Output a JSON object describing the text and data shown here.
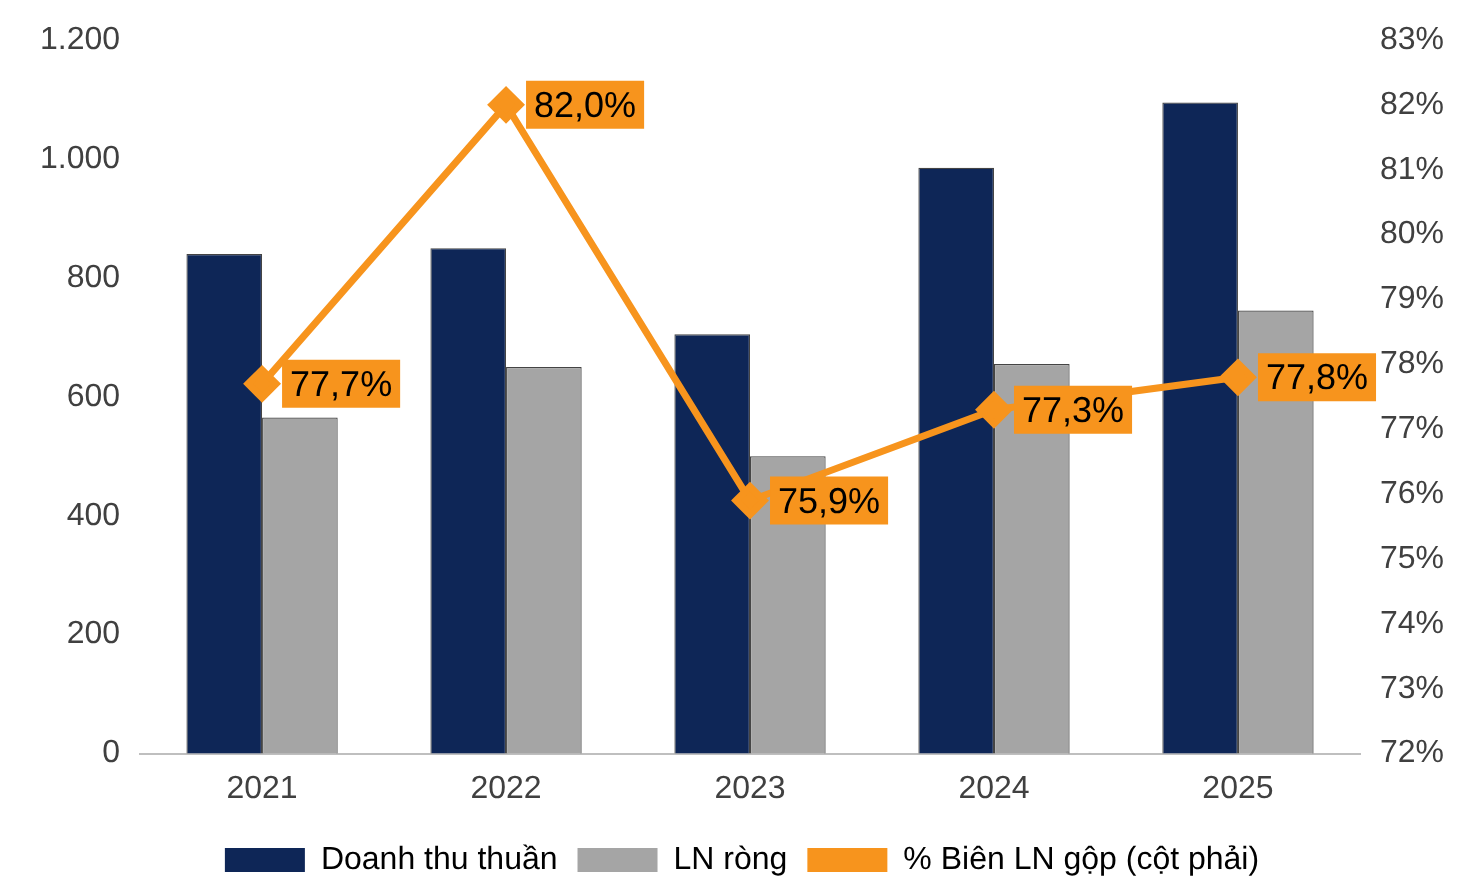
{
  "chart_data": {
    "type": "bar",
    "categories": [
      "2021",
      "2022",
      "2023",
      "2024",
      "2025"
    ],
    "series": [
      {
        "name": "Doanh thu thuần",
        "color": "#0e2657",
        "values": [
          840,
          850,
          705,
          985,
          1095
        ]
      },
      {
        "name": "LN ròng",
        "color": "#a5a5a5",
        "values": [
          565,
          650,
          500,
          655,
          745
        ]
      },
      {
        "name": "% Biên LN gộp (cột phải)",
        "type": "line",
        "axis": "y2",
        "color": "#f7941d",
        "marker": "diamond",
        "values": [
          77.7,
          82.0,
          75.9,
          77.3,
          77.8
        ],
        "value_labels": [
          "77,7%",
          "82,0%",
          "75,9%",
          "77,3%",
          "77,8%"
        ]
      }
    ],
    "ylim": [
      0,
      1200
    ],
    "yticks": [
      0,
      200,
      400,
      600,
      800,
      {
        "value": 1000,
        "label": "1.000"
      },
      {
        "value": 1200,
        "label": "1.200"
      }
    ],
    "y2lim": [
      72,
      83
    ],
    "y2ticks": [
      {
        "value": 72,
        "label": "72%"
      },
      {
        "value": 73,
        "label": "73%"
      },
      {
        "value": 74,
        "label": "74%"
      },
      {
        "value": 75,
        "label": "75%"
      },
      {
        "value": 76,
        "label": "76%"
      },
      {
        "value": 77,
        "label": "77%"
      },
      {
        "value": 78,
        "label": "78%"
      },
      {
        "value": 79,
        "label": "79%"
      },
      {
        "value": 80,
        "label": "80%"
      },
      {
        "value": 81,
        "label": "81%"
      },
      {
        "value": 82,
        "label": "82%"
      },
      {
        "value": 83,
        "label": "83%"
      }
    ],
    "grid": false,
    "legend": "bottom"
  }
}
